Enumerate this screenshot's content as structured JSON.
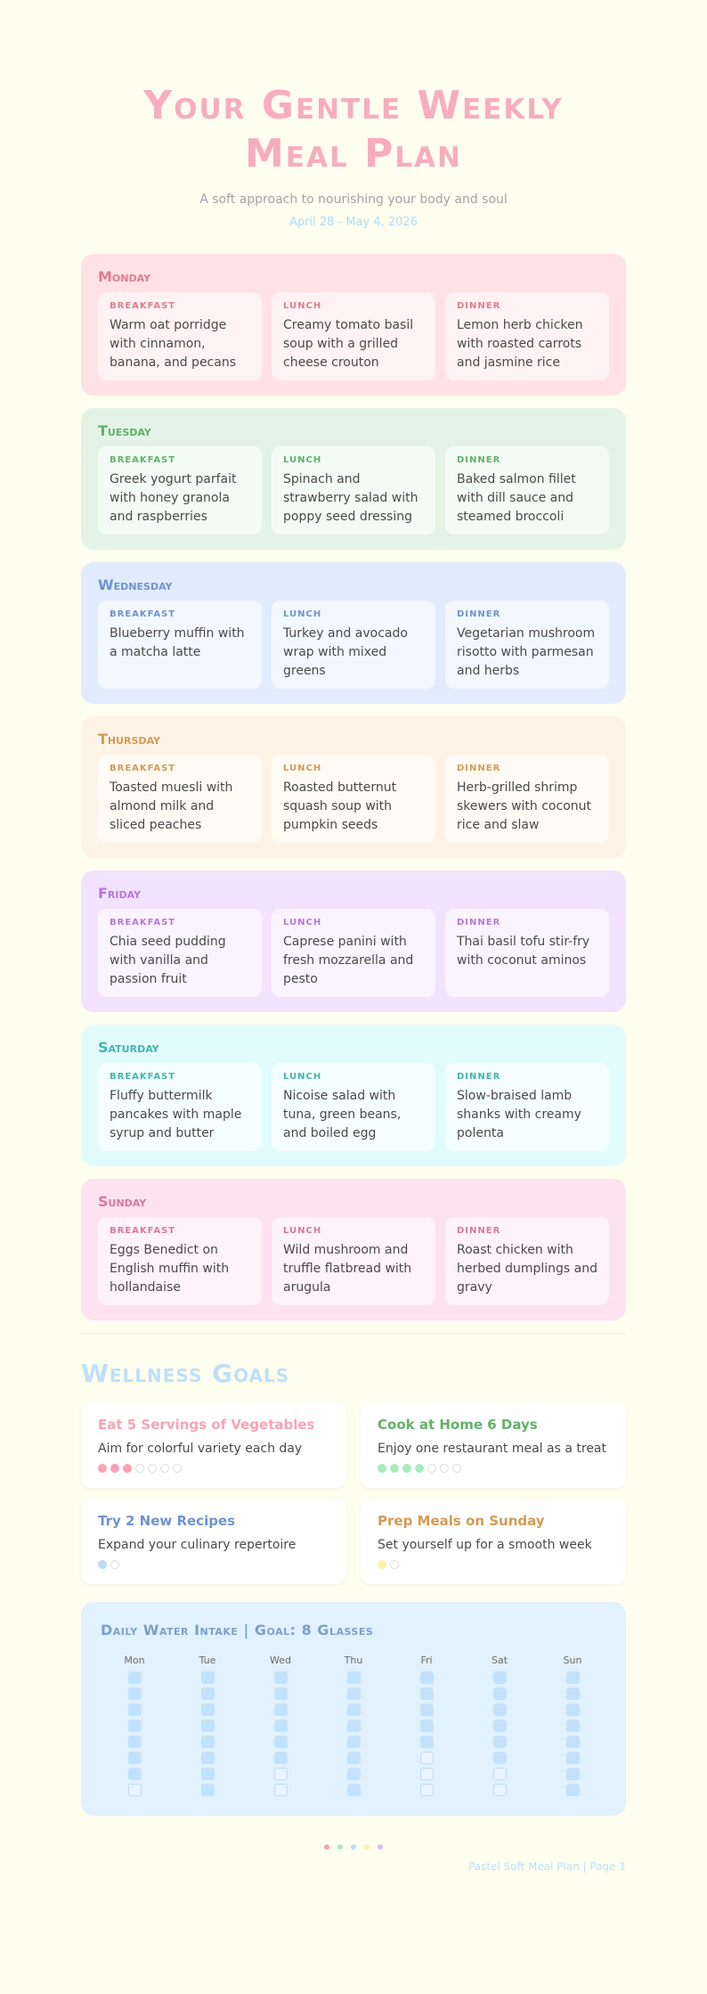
{
  "header": {
    "title": "Your Gentle Weekly Meal Plan",
    "subtitle": "A soft approach to nourishing your body and soul",
    "date_range": "April 28 - May 4, 2026"
  },
  "days": [
    {
      "name": "Monday",
      "breakfast_label": "BREAKFAST",
      "breakfast": "Warm oat porridge with cinnamon, banana, and pecans",
      "lunch_label": "LUNCH",
      "lunch": "Creamy tomato basil soup with a grilled cheese crouton",
      "dinner_label": "DINNER",
      "dinner": "Lemon herb chicken with roasted carrots and jasmine rice"
    },
    {
      "name": "Tuesday",
      "breakfast_label": "BREAKFAST",
      "breakfast": "Greek yogurt parfait with honey granola and raspberries",
      "lunch_label": "LUNCH",
      "lunch": "Spinach and strawberry salad with poppy seed dressing",
      "dinner_label": "DINNER",
      "dinner": "Baked salmon fillet with dill sauce and steamed broccoli"
    },
    {
      "name": "Wednesday",
      "breakfast_label": "BREAKFAST",
      "breakfast": "Blueberry muffin with a matcha latte",
      "lunch_label": "LUNCH",
      "lunch": "Turkey and avocado wrap with mixed greens",
      "dinner_label": "DINNER",
      "dinner": "Vegetarian mushroom risotto with parmesan and herbs"
    },
    {
      "name": "Thursday",
      "breakfast_label": "BREAKFAST",
      "breakfast": "Toasted muesli with almond milk and sliced peaches",
      "lunch_label": "LUNCH",
      "lunch": "Roasted butternut squash soup with pumpkin seeds",
      "dinner_label": "DINNER",
      "dinner": "Herb-grilled shrimp skewers with coconut rice and slaw"
    },
    {
      "name": "Friday",
      "breakfast_label": "BREAKFAST",
      "breakfast": "Chia seed pudding with vanilla and passion fruit",
      "lunch_label": "LUNCH",
      "lunch": "Caprese panini with fresh mozzarella and pesto",
      "dinner_label": "DINNER",
      "dinner": "Thai basil tofu stir-fry with coconut aminos"
    },
    {
      "name": "Saturday",
      "breakfast_label": "BREAKFAST",
      "breakfast": "Fluffy buttermilk pancakes with maple syrup and butter",
      "lunch_label": "LUNCH",
      "lunch": "Nicoise salad with tuna, green beans, and boiled egg",
      "dinner_label": "DINNER",
      "dinner": "Slow-braised lamb shanks with creamy polenta"
    },
    {
      "name": "Sunday",
      "breakfast_label": "BREAKFAST",
      "breakfast": "Eggs Benedict on English muffin with hollandaise",
      "lunch_label": "LUNCH",
      "lunch": "Wild mushroom and truffle flatbread with arugula",
      "dinner_label": "DINNER",
      "dinner": "Roast chicken with herbed dumplings and gravy"
    }
  ],
  "goals": {
    "title": "Wellness Goals",
    "items": [
      {
        "title": "Eat 5 Servings of Vegetables",
        "desc": "Aim for colorful variety each day",
        "color": "#f7a3b5",
        "done": 3,
        "total": 7
      },
      {
        "title": "Cook at Home 6 Days",
        "desc": "Enjoy one restaurant meal as a treat",
        "color": "#a9ecbc",
        "done": 4,
        "total": 7
      },
      {
        "title": "Try 2 New Recipes",
        "desc": "Expand your culinary repertoire",
        "color": "#b9def6",
        "done": 1,
        "total": 2
      },
      {
        "title": "Prep Meals on Sunday",
        "desc": "Set yourself up for a smooth week",
        "color": "#faf3a6",
        "done": 1,
        "total": 2
      }
    ],
    "title_colors": [
      "#f7a3b5",
      "#62b16a",
      "#6f93cf",
      "#d49a55"
    ]
  },
  "water": {
    "title": "Daily Water Intake | Goal: 8 Glasses",
    "days": [
      {
        "label": "Mon",
        "filled": 7,
        "total": 8
      },
      {
        "label": "Tue",
        "filled": 8,
        "total": 8
      },
      {
        "label": "Wed",
        "filled": 6,
        "total": 8
      },
      {
        "label": "Thu",
        "filled": 8,
        "total": 8
      },
      {
        "label": "Fri",
        "filled": 5,
        "total": 8
      },
      {
        "label": "Sat",
        "filled": 6,
        "total": 8
      },
      {
        "label": "Sun",
        "filled": 8,
        "total": 8
      }
    ]
  },
  "footer": {
    "text": "Pastel Soft Meal Plan | Page 1",
    "dot_colors": [
      "#f7a3b5",
      "#a9ecbc",
      "#b9def6",
      "#faf3a6",
      "#e3b6f7"
    ]
  }
}
